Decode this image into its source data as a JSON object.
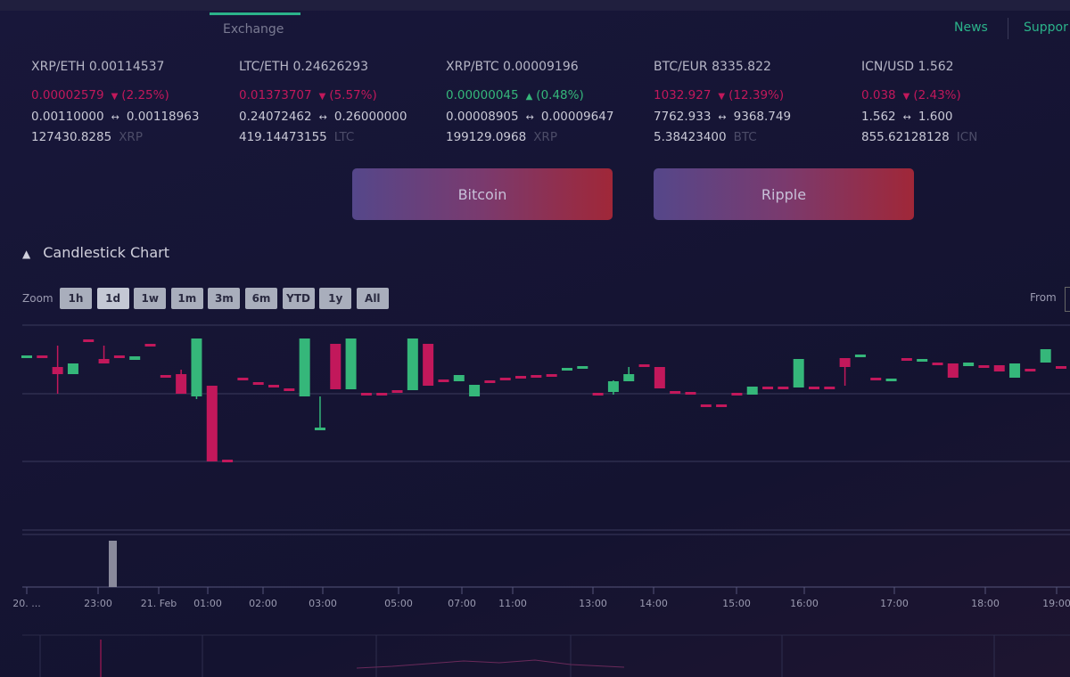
{
  "nav": {
    "items": [
      "Exchange",
      "News",
      "Suppor"
    ]
  },
  "tickers": [
    {
      "pair": "XRP/ETH 0.00114537",
      "change": "0.00002579",
      "change_pct": "(2.25%)",
      "direction": "down",
      "low": "0.00110000",
      "high": "0.00118963",
      "volume": "127430.8285",
      "unit": "XRP"
    },
    {
      "pair": "LTC/ETH 0.24626293",
      "change": "0.01373707",
      "change_pct": "(5.57%)",
      "direction": "down",
      "low": "0.24072462",
      "high": "0.26000000",
      "volume": "419.14473155",
      "unit": "LTC"
    },
    {
      "pair": "XRP/BTC 0.00009196",
      "change": "0.00000045",
      "change_pct": "(0.48%)",
      "direction": "up",
      "low": "0.00008905",
      "high": "0.00009647",
      "volume": "199129.0968",
      "unit": "XRP"
    },
    {
      "pair": "BTC/EUR 8335.822",
      "change": "1032.927",
      "change_pct": "(12.39%)",
      "direction": "down",
      "low": "7762.933",
      "high": "9368.749",
      "volume": "5.38423400",
      "unit": "BTC"
    },
    {
      "pair": "ICN/USD 1.562",
      "change": "0.038",
      "change_pct": "(2.43%)",
      "direction": "down",
      "low": "1.562",
      "high": "1.600",
      "volume": "855.62128128",
      "unit": "ICN"
    }
  ],
  "buttons": [
    "Bitcoin",
    "Ripple"
  ],
  "section": {
    "title": "Candlestick Chart",
    "zoom_label": "Zoom",
    "zoom_options": [
      "1h",
      "1d",
      "1w",
      "1m",
      "3m",
      "6m",
      "YTD",
      "1y",
      "All"
    ],
    "from_label": "From"
  },
  "chart": {
    "type": "candlestick",
    "ylim": [
      0,
      230
    ],
    "colors": {
      "up": "#35b77a",
      "down": "#c2185b"
    },
    "candles": [
      [
        194,
        196,
        194,
        196
      ],
      [
        196,
        196,
        195,
        195
      ],
      [
        183,
        207,
        153,
        175
      ],
      [
        175,
        187,
        175,
        187
      ],
      [
        214,
        214,
        213,
        213
      ],
      [
        192,
        207,
        187,
        187
      ],
      [
        196,
        196,
        195,
        195
      ],
      [
        191,
        195,
        191,
        195
      ],
      [
        209,
        209,
        208,
        208
      ],
      [
        174,
        174,
        173,
        173
      ],
      [
        175,
        180,
        153,
        153
      ],
      [
        150,
        215,
        147,
        215
      ],
      [
        162,
        162,
        77,
        77
      ],
      [
        79,
        79,
        78,
        78
      ],
      [
        171,
        171,
        170,
        170
      ],
      [
        166,
        166,
        165,
        165
      ],
      [
        163,
        163,
        162,
        162
      ],
      [
        159,
        159,
        158,
        158
      ],
      [
        150,
        215,
        150,
        215
      ],
      [
        113,
        150,
        113,
        115
      ],
      [
        209,
        209,
        158,
        158
      ],
      [
        158,
        215,
        158,
        215
      ],
      [
        154,
        154,
        153,
        153
      ],
      [
        154,
        154,
        153,
        153
      ],
      [
        157,
        157,
        156,
        156
      ],
      [
        157,
        215,
        157,
        215
      ],
      [
        209,
        209,
        162,
        162
      ],
      [
        169,
        169,
        168,
        168
      ],
      [
        167,
        174,
        167,
        174
      ],
      [
        150,
        163,
        150,
        163
      ],
      [
        168,
        168,
        167,
        167
      ],
      [
        171,
        171,
        170,
        170
      ],
      [
        173,
        173,
        172,
        172
      ],
      [
        174,
        174,
        173,
        173
      ],
      [
        175,
        175,
        174,
        174
      ],
      [
        180,
        182,
        180,
        182
      ],
      [
        183,
        184,
        183,
        184
      ],
      [
        154,
        154,
        153,
        153
      ],
      [
        155,
        168,
        152,
        167
      ],
      [
        167,
        183,
        167,
        175
      ],
      [
        186,
        186,
        185,
        185
      ],
      [
        183,
        183,
        159,
        159
      ],
      [
        156,
        156,
        155,
        155
      ],
      [
        155,
        155,
        154,
        154
      ],
      [
        141,
        141,
        140,
        140
      ],
      [
        141,
        141,
        140,
        140
      ],
      [
        154,
        154,
        153,
        153
      ],
      [
        152,
        161,
        152,
        161
      ],
      [
        161,
        161,
        160,
        160
      ],
      [
        161,
        161,
        160,
        160
      ],
      [
        160,
        192,
        160,
        192
      ],
      [
        161,
        161,
        160,
        160
      ],
      [
        161,
        161,
        160,
        160
      ],
      [
        193,
        193,
        162,
        183
      ],
      [
        196,
        197,
        196,
        197
      ],
      [
        171,
        171,
        170,
        170
      ],
      [
        169,
        170,
        169,
        170
      ],
      [
        193,
        193,
        192,
        192
      ],
      [
        191,
        192,
        191,
        192
      ],
      [
        188,
        188,
        187,
        187
      ],
      [
        187,
        187,
        171,
        171
      ],
      [
        184,
        188,
        184,
        188
      ],
      [
        185,
        185,
        184,
        184
      ],
      [
        185,
        185,
        178,
        178
      ],
      [
        171,
        187,
        171,
        187
      ],
      [
        181,
        181,
        180,
        180
      ],
      [
        188,
        203,
        188,
        203
      ],
      [
        184,
        184,
        183,
        183
      ]
    ],
    "x_labels": [
      "20. ...",
      "23:00",
      "21. Feb",
      "01:00",
      "02:00",
      "03:00",
      "05:00",
      "07:00",
      "11:00",
      "13:00",
      "14:00",
      "15:00",
      "16:00",
      "17:00",
      "18:00",
      "19:00"
    ]
  }
}
